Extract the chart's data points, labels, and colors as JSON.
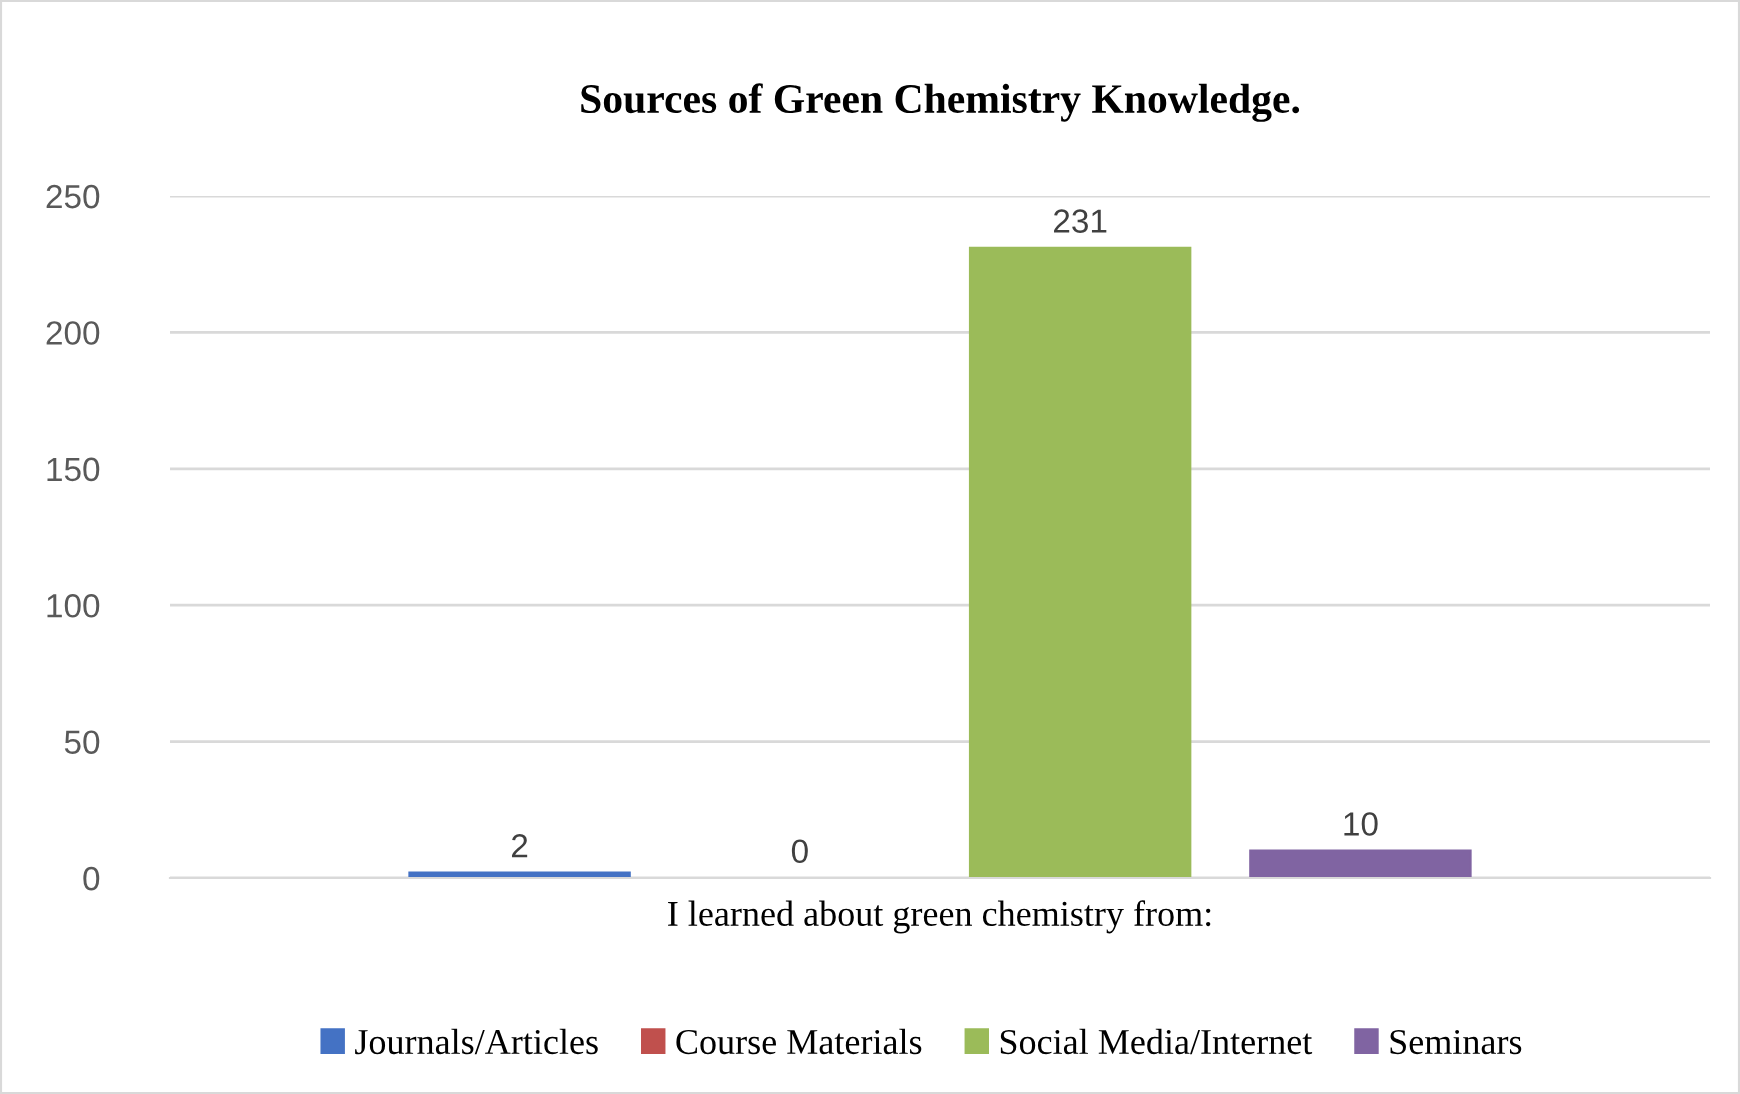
{
  "chart_data": {
    "type": "bar",
    "title": "Sources of Green Chemistry Knowledge.",
    "categories": [
      null
    ],
    "xlabel": "I learned about green chemistry from:",
    "series": [
      {
        "name": "Journals/Articles",
        "color": "#4472c4",
        "values": [
          2
        ]
      },
      {
        "name": "Course Materials",
        "color": "#c0504d",
        "values": [
          0
        ]
      },
      {
        "name": "Social Media/Internet",
        "color": "#9bbb59",
        "values": [
          231
        ]
      },
      {
        "name": "Seminars",
        "color": "#8064a2",
        "values": [
          10
        ]
      }
    ],
    "ylim": [
      0,
      250
    ],
    "yticks": [
      0,
      50,
      100,
      150,
      200,
      250
    ],
    "grid": "y",
    "legend": "bottom",
    "data_labels": true
  }
}
